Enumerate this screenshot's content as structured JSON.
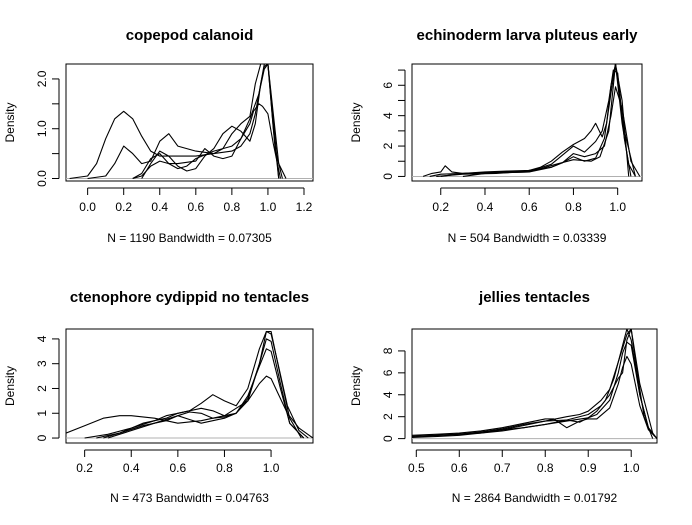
{
  "chart_data": [
    {
      "type": "line",
      "title": "copepod calanoid",
      "xlabel": "N = 1190   Bandwidth = 0.07305",
      "ylabel": "Density",
      "xlim": [
        -0.12,
        1.25
      ],
      "ylim": [
        -0.05,
        2.3
      ],
      "x_ticks": [
        0.0,
        0.2,
        0.4,
        0.6,
        0.8,
        1.0,
        1.2
      ],
      "x_tick_labels": [
        "0.0",
        "0.2",
        "0.4",
        "0.6",
        "0.8",
        "1.0",
        "1.2"
      ],
      "y_ticks": [
        0.0,
        1.0,
        2.0
      ],
      "y_tick_labels": [
        "0.0",
        "1.0",
        "2.0"
      ],
      "y_minor_ticks": [
        0.5,
        1.5
      ],
      "grid": false,
      "series": [
        {
          "x": [
            -0.1,
            0.0,
            0.05,
            0.1,
            0.15,
            0.2,
            0.25,
            0.3,
            0.35,
            0.4,
            0.5,
            0.6,
            0.7,
            0.8,
            0.85,
            0.9,
            0.93,
            0.96,
            0.98,
            1.0,
            1.03,
            1.06,
            1.1
          ],
          "y": [
            0.0,
            0.05,
            0.3,
            0.8,
            1.2,
            1.35,
            1.2,
            0.85,
            0.55,
            0.45,
            0.45,
            0.45,
            0.5,
            0.55,
            0.65,
            0.9,
            1.3,
            1.9,
            2.25,
            2.3,
            1.3,
            0.3,
            0.0
          ]
        },
        {
          "x": [
            0.0,
            0.1,
            0.15,
            0.2,
            0.25,
            0.3,
            0.35,
            0.4,
            0.45,
            0.5,
            0.6,
            0.7,
            0.75,
            0.8,
            0.85,
            0.9,
            0.93,
            0.96,
            0.98,
            1.0,
            1.04,
            1.08
          ],
          "y": [
            0.0,
            0.05,
            0.3,
            0.65,
            0.5,
            0.3,
            0.35,
            0.75,
            0.9,
            0.65,
            0.55,
            0.5,
            0.6,
            0.9,
            1.1,
            1.25,
            1.9,
            2.3,
            2.3,
            2.3,
            0.6,
            0.0
          ]
        },
        {
          "x": [
            0.25,
            0.3,
            0.35,
            0.4,
            0.45,
            0.5,
            0.55,
            0.6,
            0.7,
            0.8,
            0.85,
            0.9,
            0.92,
            0.95,
            0.97,
            1.0,
            1.03,
            1.07
          ],
          "y": [
            0.0,
            0.1,
            0.4,
            0.5,
            0.3,
            0.2,
            0.25,
            0.4,
            0.55,
            0.65,
            0.8,
            1.1,
            1.35,
            1.5,
            1.45,
            1.3,
            0.7,
            0.0
          ]
        },
        {
          "x": [
            0.3,
            0.35,
            0.4,
            0.45,
            0.5,
            0.55,
            0.6,
            0.65,
            0.7,
            0.75,
            0.8,
            0.85,
            0.9,
            0.93,
            0.96,
            0.98,
            1.0,
            1.03,
            1.06
          ],
          "y": [
            0.0,
            0.3,
            0.55,
            0.45,
            0.25,
            0.15,
            0.2,
            0.45,
            0.6,
            0.9,
            1.05,
            0.95,
            0.75,
            1.1,
            1.9,
            2.3,
            2.3,
            1.0,
            0.0
          ]
        },
        {
          "x": [
            0.25,
            0.3,
            0.35,
            0.4,
            0.45,
            0.5,
            0.6,
            0.65,
            0.7,
            0.75,
            0.8,
            0.85,
            0.9,
            0.95,
            0.98,
            1.0,
            1.03,
            1.06
          ],
          "y": [
            0.0,
            0.05,
            0.25,
            0.35,
            0.3,
            0.3,
            0.35,
            0.6,
            0.45,
            0.4,
            0.45,
            0.8,
            1.2,
            1.7,
            2.2,
            2.3,
            1.2,
            0.0
          ]
        }
      ]
    },
    {
      "type": "line",
      "title": "echinoderm larva pluteus early",
      "xlabel": "N = 504   Bandwidth = 0.03339",
      "ylabel": "Density",
      "xlim": [
        0.07,
        1.11
      ],
      "ylim": [
        -0.3,
        7.4
      ],
      "x_ticks": [
        0.2,
        0.4,
        0.6,
        0.8,
        1.0
      ],
      "x_tick_labels": [
        "0.2",
        "0.4",
        "0.6",
        "0.8",
        "1.0"
      ],
      "y_ticks": [
        0,
        2,
        4,
        6
      ],
      "y_tick_labels": [
        "0",
        "2",
        "4",
        "6"
      ],
      "y_minor_ticks": [
        1,
        3,
        5,
        7
      ],
      "grid": false,
      "series": [
        {
          "x": [
            0.12,
            0.16,
            0.2,
            0.22,
            0.25,
            0.3,
            0.4,
            0.5,
            0.6,
            0.65,
            0.7,
            0.75,
            0.8,
            0.85,
            0.88,
            0.9,
            0.93,
            0.95,
            0.97,
            0.99,
            1.02,
            1.05,
            1.08
          ],
          "y": [
            0.0,
            0.2,
            0.3,
            0.7,
            0.3,
            0.2,
            0.3,
            0.35,
            0.4,
            0.6,
            1.0,
            1.6,
            2.1,
            2.5,
            3.0,
            3.5,
            2.6,
            3.5,
            6.0,
            7.4,
            3.5,
            0.8,
            0.0
          ]
        },
        {
          "x": [
            0.15,
            0.2,
            0.3,
            0.4,
            0.5,
            0.6,
            0.7,
            0.75,
            0.8,
            0.85,
            0.9,
            0.93,
            0.96,
            0.98,
            1.0,
            1.03,
            1.06
          ],
          "y": [
            0.0,
            0.15,
            0.2,
            0.25,
            0.3,
            0.35,
            0.8,
            1.4,
            2.0,
            1.6,
            2.3,
            3.0,
            5.0,
            7.0,
            6.8,
            2.5,
            0.0
          ]
        },
        {
          "x": [
            0.3,
            0.4,
            0.5,
            0.6,
            0.65,
            0.7,
            0.75,
            0.8,
            0.85,
            0.9,
            0.94,
            0.97,
            0.99,
            1.02,
            1.06,
            1.1
          ],
          "y": [
            0.0,
            0.2,
            0.25,
            0.3,
            0.5,
            0.6,
            0.9,
            1.5,
            1.3,
            1.5,
            2.0,
            4.0,
            5.9,
            4.5,
            1.0,
            0.0
          ]
        },
        {
          "x": [
            0.2,
            0.3,
            0.4,
            0.5,
            0.6,
            0.7,
            0.75,
            0.8,
            0.85,
            0.9,
            0.94,
            0.97,
            0.99,
            1.02,
            1.05
          ],
          "y": [
            0.0,
            0.2,
            0.25,
            0.25,
            0.3,
            0.6,
            0.9,
            1.3,
            1.0,
            1.2,
            2.5,
            5.5,
            7.4,
            5.0,
            0.0
          ]
        },
        {
          "x": [
            0.18,
            0.3,
            0.45,
            0.55,
            0.65,
            0.72,
            0.8,
            0.88,
            0.92,
            0.96,
            0.99,
            1.03,
            1.08
          ],
          "y": [
            0.0,
            0.15,
            0.2,
            0.3,
            0.5,
            0.8,
            1.1,
            1.0,
            1.3,
            3.0,
            7.4,
            3.0,
            0.0
          ]
        }
      ]
    },
    {
      "type": "line",
      "title": "ctenophore cydippid no tentacles",
      "xlabel": "N = 473   Bandwidth = 0.04763",
      "ylabel": "Density",
      "xlim": [
        0.12,
        1.18
      ],
      "ylim": [
        -0.2,
        4.4
      ],
      "x_ticks": [
        0.2,
        0.4,
        0.6,
        0.8,
        1.0
      ],
      "x_tick_labels": [
        "0.2",
        "0.4",
        "0.6",
        "0.8",
        "1.0"
      ],
      "y_ticks": [
        0,
        1,
        2,
        3,
        4
      ],
      "y_tick_labels": [
        "0",
        "1",
        "2",
        "3",
        "4"
      ],
      "y_minor_ticks": [],
      "grid": false,
      "series": [
        {
          "x": [
            0.12,
            0.2,
            0.28,
            0.35,
            0.4,
            0.5,
            0.6,
            0.7,
            0.8,
            0.85,
            0.9,
            0.95,
            0.98,
            1.0,
            1.03,
            1.07,
            1.12,
            1.18
          ],
          "y": [
            0.2,
            0.5,
            0.8,
            0.9,
            0.9,
            0.8,
            0.6,
            0.7,
            0.9,
            1.2,
            1.5,
            2.2,
            2.5,
            2.4,
            1.8,
            1.0,
            0.4,
            0.0
          ]
        },
        {
          "x": [
            0.2,
            0.3,
            0.4,
            0.5,
            0.55,
            0.6,
            0.65,
            0.7,
            0.75,
            0.8,
            0.85,
            0.9,
            0.95,
            0.98,
            1.0,
            1.03,
            1.07,
            1.12,
            1.16
          ],
          "y": [
            0.0,
            0.15,
            0.4,
            0.7,
            0.9,
            1.0,
            1.1,
            1.4,
            1.75,
            1.5,
            1.3,
            2.0,
            3.6,
            4.3,
            4.2,
            3.0,
            1.3,
            0.3,
            0.0
          ]
        },
        {
          "x": [
            0.28,
            0.35,
            0.45,
            0.55,
            0.6,
            0.65,
            0.7,
            0.75,
            0.8,
            0.85,
            0.9,
            0.95,
            0.98,
            1.0,
            1.04,
            1.08,
            1.13
          ],
          "y": [
            0.0,
            0.2,
            0.5,
            0.7,
            0.9,
            0.75,
            0.6,
            0.7,
            0.8,
            1.0,
            1.6,
            3.0,
            4.3,
            4.3,
            2.5,
            0.8,
            0.0
          ]
        },
        {
          "x": [
            0.3,
            0.4,
            0.5,
            0.6,
            0.65,
            0.7,
            0.75,
            0.8,
            0.85,
            0.9,
            0.95,
            0.98,
            1.0,
            1.04,
            1.08,
            1.14
          ],
          "y": [
            0.0,
            0.3,
            0.6,
            0.9,
            1.05,
            1.0,
            0.8,
            0.85,
            1.0,
            1.5,
            3.0,
            4.0,
            3.9,
            2.2,
            0.6,
            0.0
          ]
        },
        {
          "x": [
            0.25,
            0.35,
            0.45,
            0.55,
            0.6,
            0.65,
            0.7,
            0.75,
            0.8,
            0.85,
            0.9,
            0.95,
            0.98,
            1.0,
            1.04,
            1.08,
            1.14
          ],
          "y": [
            0.0,
            0.2,
            0.6,
            0.8,
            1.0,
            1.1,
            1.2,
            1.1,
            0.9,
            1.0,
            1.7,
            2.9,
            3.6,
            3.5,
            2.0,
            0.6,
            0.0
          ]
        }
      ]
    },
    {
      "type": "line",
      "title": "jellies tentacles",
      "xlabel": "N = 2864   Bandwidth = 0.01792",
      "ylabel": "Density",
      "xlim": [
        0.49,
        1.06
      ],
      "ylim": [
        -0.4,
        10.0
      ],
      "x_ticks": [
        0.5,
        0.6,
        0.7,
        0.8,
        0.9,
        1.0
      ],
      "x_tick_labels": [
        "0.5",
        "0.6",
        "0.7",
        "0.8",
        "0.9",
        "1.0"
      ],
      "y_ticks": [
        0,
        2,
        4,
        6,
        8
      ],
      "y_tick_labels": [
        "0",
        "2",
        "4",
        "6",
        "8"
      ],
      "y_minor_ticks": [],
      "grid": false,
      "series": [
        {
          "x": [
            0.49,
            0.55,
            0.6,
            0.65,
            0.7,
            0.75,
            0.8,
            0.85,
            0.88,
            0.9,
            0.92,
            0.94,
            0.96,
            0.98,
            0.99,
            1.0,
            1.02,
            1.04,
            1.06
          ],
          "y": [
            0.2,
            0.3,
            0.4,
            0.6,
            0.9,
            1.3,
            1.6,
            1.7,
            1.5,
            1.9,
            2.5,
            3.5,
            5.5,
            8.5,
            10.0,
            9.0,
            4.0,
            1.0,
            0.0
          ]
        },
        {
          "x": [
            0.49,
            0.55,
            0.6,
            0.65,
            0.7,
            0.75,
            0.8,
            0.85,
            0.88,
            0.9,
            0.93,
            0.95,
            0.97,
            0.99,
            1.0,
            1.02,
            1.05
          ],
          "y": [
            0.1,
            0.2,
            0.3,
            0.5,
            0.8,
            1.2,
            1.6,
            2.0,
            2.2,
            2.5,
            3.5,
            4.5,
            7.0,
            9.5,
            10.0,
            5.0,
            0.5
          ]
        },
        {
          "x": [
            0.49,
            0.55,
            0.6,
            0.65,
            0.7,
            0.75,
            0.8,
            0.82,
            0.85,
            0.88,
            0.9,
            0.92,
            0.95,
            0.97,
            0.98,
            0.99,
            1.0,
            1.02,
            1.04,
            1.06
          ],
          "y": [
            0.3,
            0.4,
            0.5,
            0.7,
            1.0,
            1.4,
            1.8,
            1.8,
            1.0,
            1.6,
            1.8,
            1.8,
            2.8,
            5.0,
            6.5,
            7.5,
            6.8,
            3.0,
            0.8,
            0.0
          ]
        },
        {
          "x": [
            0.5,
            0.55,
            0.6,
            0.65,
            0.7,
            0.75,
            0.8,
            0.85,
            0.9,
            0.92,
            0.95,
            0.97,
            0.98,
            0.99,
            1.0,
            1.02,
            1.04,
            1.06
          ],
          "y": [
            0.2,
            0.3,
            0.4,
            0.6,
            0.8,
            1.0,
            1.3,
            1.6,
            1.9,
            2.2,
            3.5,
            6.0,
            7.8,
            8.8,
            8.5,
            4.0,
            1.0,
            0.0
          ]
        },
        {
          "x": [
            0.49,
            0.55,
            0.6,
            0.65,
            0.7,
            0.75,
            0.8,
            0.85,
            0.9,
            0.93,
            0.95,
            0.97,
            0.98,
            0.99,
            1.0,
            1.01,
            1.03,
            1.05
          ],
          "y": [
            0.2,
            0.3,
            0.4,
            0.5,
            0.7,
            1.0,
            1.3,
            1.7,
            2.2,
            3.0,
            4.0,
            5.5,
            6.0,
            9.0,
            10.0,
            7.0,
            2.0,
            0.0
          ]
        }
      ]
    }
  ]
}
